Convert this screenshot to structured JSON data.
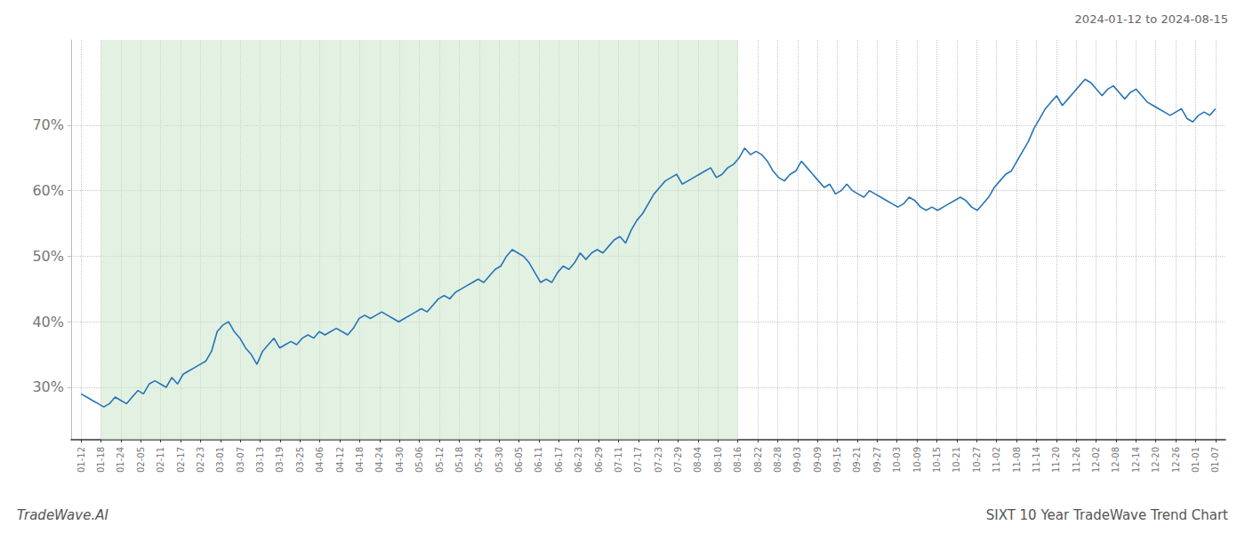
{
  "chart_data": {
    "type": "line",
    "title": "SIXT 10 Year TradeWave Trend Chart",
    "subtitle": "2024-01-12 to 2024-08-15",
    "annotations": [
      "TradeWave.AI"
    ],
    "color": "#2575b7",
    "grid": true,
    "shaded": {
      "x": [
        1,
        33
      ],
      "color": "#cce5cc"
    },
    "xlim": [
      -0.5,
      57.5
    ],
    "xticks": [
      {
        "value": 0,
        "label": "01-12"
      },
      {
        "value": 1,
        "label": "01-18"
      },
      {
        "value": 2,
        "label": "01-24"
      },
      {
        "value": 3,
        "label": "02-05"
      },
      {
        "value": 4,
        "label": "02-11"
      },
      {
        "value": 5,
        "label": "02-17"
      },
      {
        "value": 6,
        "label": "02-23"
      },
      {
        "value": 7,
        "label": "03-01"
      },
      {
        "value": 8,
        "label": "03-07"
      },
      {
        "value": 9,
        "label": "03-13"
      },
      {
        "value": 10,
        "label": "03-19"
      },
      {
        "value": 11,
        "label": "03-25"
      },
      {
        "value": 12,
        "label": "04-06"
      },
      {
        "value": 13,
        "label": "04-12"
      },
      {
        "value": 14,
        "label": "04-18"
      },
      {
        "value": 15,
        "label": "04-24"
      },
      {
        "value": 16,
        "label": "04-30"
      },
      {
        "value": 17,
        "label": "05-06"
      },
      {
        "value": 18,
        "label": "05-12"
      },
      {
        "value": 19,
        "label": "05-18"
      },
      {
        "value": 20,
        "label": "05-24"
      },
      {
        "value": 21,
        "label": "05-30"
      },
      {
        "value": 22,
        "label": "06-05"
      },
      {
        "value": 23,
        "label": "06-11"
      },
      {
        "value": 24,
        "label": "06-17"
      },
      {
        "value": 25,
        "label": "06-23"
      },
      {
        "value": 26,
        "label": "06-29"
      },
      {
        "value": 27,
        "label": "07-11"
      },
      {
        "value": 28,
        "label": "07-17"
      },
      {
        "value": 29,
        "label": "07-23"
      },
      {
        "value": 30,
        "label": "07-29"
      },
      {
        "value": 31,
        "label": "08-04"
      },
      {
        "value": 32,
        "label": "08-10"
      },
      {
        "value": 33,
        "label": "08-16"
      },
      {
        "value": 34,
        "label": "08-22"
      },
      {
        "value": 35,
        "label": "08-28"
      },
      {
        "value": 36,
        "label": "09-03"
      },
      {
        "value": 37,
        "label": "09-09"
      },
      {
        "value": 38,
        "label": "09-15"
      },
      {
        "value": 39,
        "label": "09-21"
      },
      {
        "value": 40,
        "label": "09-27"
      },
      {
        "value": 41,
        "label": "10-03"
      },
      {
        "value": 42,
        "label": "10-09"
      },
      {
        "value": 43,
        "label": "10-15"
      },
      {
        "value": 44,
        "label": "10-21"
      },
      {
        "value": 45,
        "label": "10-27"
      },
      {
        "value": 46,
        "label": "11-02"
      },
      {
        "value": 47,
        "label": "11-08"
      },
      {
        "value": 48,
        "label": "11-14"
      },
      {
        "value": 49,
        "label": "11-20"
      },
      {
        "value": 50,
        "label": "11-26"
      },
      {
        "value": 51,
        "label": "12-02"
      },
      {
        "value": 52,
        "label": "12-08"
      },
      {
        "value": 53,
        "label": "12-14"
      },
      {
        "value": 54,
        "label": "12-20"
      },
      {
        "value": 55,
        "label": "12-26"
      },
      {
        "value": 56,
        "label": "01-01"
      },
      {
        "value": 57,
        "label": "01-07"
      }
    ],
    "ylim": [
      22,
      83
    ],
    "yticks": [
      {
        "value": 30,
        "label": "30%"
      },
      {
        "value": 40,
        "label": "40%"
      },
      {
        "value": 50,
        "label": "50%"
      },
      {
        "value": 60,
        "label": "60%"
      },
      {
        "value": 70,
        "label": "70%"
      }
    ],
    "x": [
      0,
      0.285,
      0.57,
      0.855,
      1.14,
      1.425,
      1.71,
      1.995,
      2.28,
      2.565,
      2.85,
      3.135,
      3.42,
      3.705,
      3.99,
      4.275,
      4.56,
      4.845,
      5.13,
      5.415,
      5.7,
      5.985,
      6.27,
      6.555,
      6.84,
      7.125,
      7.41,
      7.695,
      7.98,
      8.265,
      8.55,
      8.835,
      9.12,
      9.405,
      9.69,
      9.975,
      10.26,
      10.545,
      10.83,
      11.115,
      11.4,
      11.685,
      11.97,
      12.255,
      12.54,
      12.825,
      13.11,
      13.395,
      13.68,
      13.965,
      14.25,
      14.535,
      14.82,
      15.105,
      15.39,
      15.675,
      15.96,
      16.245,
      16.53,
      16.815,
      17.1,
      17.385,
      17.67,
      17.955,
      18.24,
      18.525,
      18.81,
      19.095,
      19.38,
      19.665,
      19.95,
      20.235,
      20.52,
      20.805,
      21.09,
      21.375,
      21.66,
      21.945,
      22.23,
      22.515,
      22.8,
      23.085,
      23.37,
      23.655,
      23.94,
      24.225,
      24.51,
      24.795,
      25.08,
      25.365,
      25.65,
      25.935,
      26.22,
      26.505,
      26.79,
      27.075,
      27.36,
      27.645,
      27.93,
      28.215,
      28.5,
      28.785,
      29.07,
      29.355,
      29.64,
      29.925,
      30.21,
      30.495,
      30.78,
      31.065,
      31.35,
      31.635,
      31.92,
      32.205,
      32.49,
      32.775,
      33.06,
      33.345,
      33.63,
      33.915,
      34.2,
      34.485,
      34.77,
      35.055,
      35.34,
      35.625,
      35.91,
      36.195,
      36.48,
      36.765,
      37.05,
      37.335,
      37.62,
      37.905,
      38.19,
      38.475,
      38.76,
      39.045,
      39.33,
      39.615,
      39.9,
      40.185,
      40.47,
      40.755,
      41.04,
      41.325,
      41.61,
      41.895,
      42.18,
      42.465,
      42.75,
      43.035,
      43.32,
      43.605,
      43.89,
      44.175,
      44.46,
      44.745,
      45.03,
      45.315,
      45.6,
      45.885,
      46.17,
      46.455,
      46.74,
      47.025,
      47.31,
      47.595,
      47.88,
      48.165,
      48.45,
      48.735,
      49.02,
      49.305,
      49.59,
      49.875,
      50.16,
      50.445,
      50.73,
      51.015,
      51.3,
      51.585,
      51.87,
      52.155,
      52.44,
      52.725,
      53.01,
      53.295,
      53.58,
      53.865,
      54.15,
      54.435,
      54.72,
      55.005,
      55.29,
      55.575,
      55.86,
      56.145,
      56.43,
      56.715,
      57
    ],
    "values": [
      29.0,
      28.5,
      28.0,
      27.5,
      27.0,
      27.5,
      28.5,
      28.0,
      27.5,
      28.5,
      29.5,
      29.0,
      30.5,
      31.0,
      30.5,
      30.0,
      31.5,
      30.5,
      32.0,
      32.5,
      33.0,
      33.5,
      34.0,
      35.5,
      38.5,
      39.5,
      40.0,
      38.5,
      37.5,
      36.0,
      35.0,
      33.5,
      35.5,
      36.5,
      37.5,
      36.0,
      36.5,
      37.0,
      36.5,
      37.5,
      38.0,
      37.5,
      38.5,
      38.0,
      38.5,
      39.0,
      38.5,
      38.0,
      39.0,
      40.5,
      41.0,
      40.5,
      41.0,
      41.5,
      41.0,
      40.5,
      40.0,
      40.5,
      41.0,
      41.5,
      42.0,
      41.5,
      42.5,
      43.5,
      44.0,
      43.5,
      44.5,
      45.0,
      45.5,
      46.0,
      46.5,
      46.0,
      47.0,
      48.0,
      48.5,
      50.0,
      51.0,
      50.5,
      50.0,
      49.0,
      47.5,
      46.0,
      46.5,
      46.0,
      47.5,
      48.5,
      48.0,
      49.0,
      50.5,
      49.5,
      50.5,
      51.0,
      50.5,
      51.5,
      52.5,
      53.0,
      52.0,
      54.0,
      55.5,
      56.5,
      58.0,
      59.5,
      60.5,
      61.5,
      62.0,
      62.5,
      61.0,
      61.5,
      62.0,
      62.5,
      63.0,
      63.5,
      62.0,
      62.5,
      63.5,
      64.0,
      65.0,
      66.5,
      65.5,
      66.0,
      65.5,
      64.5,
      63.0,
      62.0,
      61.5,
      62.5,
      63.0,
      64.5,
      63.5,
      62.5,
      61.5,
      60.5,
      61.0,
      59.5,
      60.0,
      61.0,
      60.0,
      59.5,
      59.0,
      60.0,
      59.5,
      59.0,
      58.5,
      58.0,
      57.5,
      58.0,
      59.0,
      58.5,
      57.5,
      57.0,
      57.5,
      57.0,
      57.5,
      58.0,
      58.5,
      59.0,
      58.5,
      57.5,
      57.0,
      58.0,
      59.0,
      60.5,
      61.5,
      62.5,
      63.0,
      64.5,
      66.0,
      67.5,
      69.5,
      71.0,
      72.5,
      73.5,
      74.5,
      73.0,
      74.0,
      75.0,
      76.0,
      77.0,
      76.5,
      75.5,
      74.5,
      75.5,
      76.0,
      75.0,
      74.0,
      75.0,
      75.5,
      74.5,
      73.5,
      73.0,
      72.5,
      72.0,
      71.5,
      72.0,
      72.5,
      71.0,
      70.5,
      71.5,
      72.0,
      71.5,
      72.5
    ]
  }
}
